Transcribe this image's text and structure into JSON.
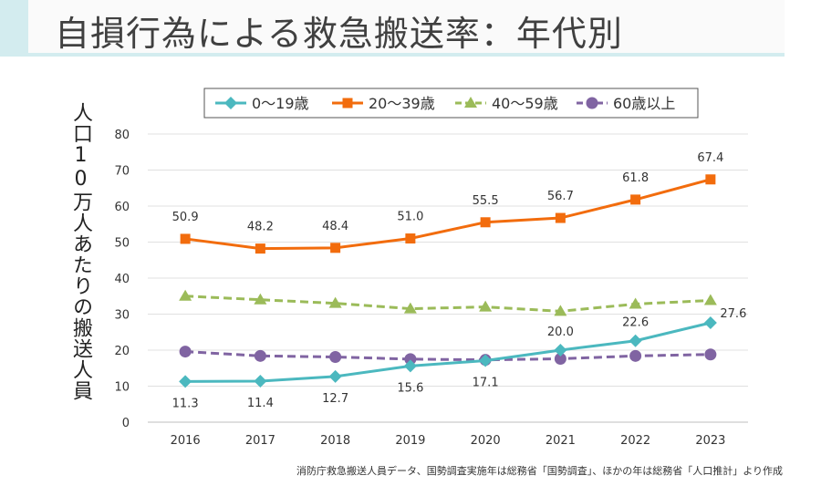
{
  "title": "自損行為による救急搬送率：年代別",
  "source": "消防庁救急搬送人員データ、国勢調査実施年は総務省「国勢調査」、ほかの年は総務省「人口推計」より作成",
  "chart_data": {
    "type": "line",
    "ylabel": "人口10万人あたりの搬送人員",
    "ylim": [
      0,
      80
    ],
    "yticks": [
      "0",
      "10",
      "20",
      "30",
      "40",
      "50",
      "60",
      "70",
      "80"
    ],
    "categories": [
      "2016",
      "2017",
      "2018",
      "2019",
      "2020",
      "2021",
      "2022",
      "2023"
    ],
    "grid": true,
    "legend_position": "top",
    "series": [
      {
        "name": "0〜19歳",
        "color": "#4bb8bf",
        "dashed": false,
        "marker": "diamond",
        "values": [
          11.3,
          11.4,
          12.7,
          15.6,
          17.1,
          20.0,
          22.6,
          27.6
        ],
        "labels": [
          "11.3",
          "11.4",
          "12.7",
          "15.6",
          "17.1",
          "20.0",
          "22.6",
          "27.6"
        ]
      },
      {
        "name": "20〜39歳",
        "color": "#f26c0d",
        "dashed": false,
        "marker": "square",
        "values": [
          50.9,
          48.2,
          48.4,
          51.0,
          55.5,
          56.7,
          61.8,
          67.4
        ],
        "labels": [
          "50.9",
          "48.2",
          "48.4",
          "51.0",
          "55.5",
          "56.7",
          "61.8",
          "67.4"
        ]
      },
      {
        "name": "40〜59歳",
        "color": "#9bbb59",
        "dashed": true,
        "marker": "triangle",
        "values": [
          35.0,
          34.0,
          33.0,
          31.5,
          32.0,
          30.8,
          32.8,
          33.8
        ]
      },
      {
        "name": "60歳以上",
        "color": "#8064a2",
        "dashed": true,
        "marker": "circle",
        "values": [
          19.6,
          18.4,
          18.1,
          17.5,
          17.3,
          17.6,
          18.4,
          18.8
        ]
      }
    ]
  }
}
